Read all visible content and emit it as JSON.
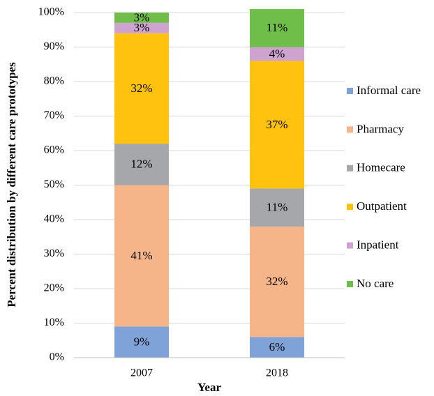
{
  "chart_data": {
    "type": "stacked_bar",
    "y_axis_label": "Percent distribution by different care prototypes",
    "x_axis_label": "Year",
    "categories": [
      "2007",
      "2018"
    ],
    "series": [
      {
        "name": "Informal care",
        "color": "#7fa3d8",
        "values": [
          9,
          6
        ],
        "value_labels": [
          "9%",
          "6%"
        ]
      },
      {
        "name": "Pharmacy",
        "color": "#f6b588",
        "values": [
          41,
          32
        ],
        "value_labels": [
          "41%",
          "32%"
        ]
      },
      {
        "name": "Homecare",
        "color": "#a5a7aa",
        "values": [
          12,
          11
        ],
        "value_labels": [
          "12%",
          "11%"
        ]
      },
      {
        "name": "Outpatient",
        "color": "#ffc20e",
        "values": [
          32,
          37
        ],
        "value_labels": [
          "32%",
          "37%"
        ]
      },
      {
        "name": "Inpatient",
        "color": "#cfa3cf",
        "values": [
          3,
          4
        ],
        "value_labels": [
          "3%",
          "4%"
        ]
      },
      {
        "name": "No care",
        "color": "#6fbe4a",
        "values": [
          3,
          11
        ],
        "value_labels": [
          "3%",
          "11%"
        ]
      }
    ],
    "ylim": [
      0,
      100
    ],
    "yticks": [
      {
        "value": 0,
        "label": "0%"
      },
      {
        "value": 10,
        "label": "10%"
      },
      {
        "value": 20,
        "label": "20%"
      },
      {
        "value": 30,
        "label": "30%"
      },
      {
        "value": 40,
        "label": "40%"
      },
      {
        "value": 50,
        "label": "50%"
      },
      {
        "value": 60,
        "label": "60%"
      },
      {
        "value": 70,
        "label": "70%"
      },
      {
        "value": 80,
        "label": "80%"
      },
      {
        "value": 90,
        "label": "90%"
      },
      {
        "value": 100,
        "label": "100%"
      }
    ],
    "grid": true,
    "legend": "right"
  }
}
